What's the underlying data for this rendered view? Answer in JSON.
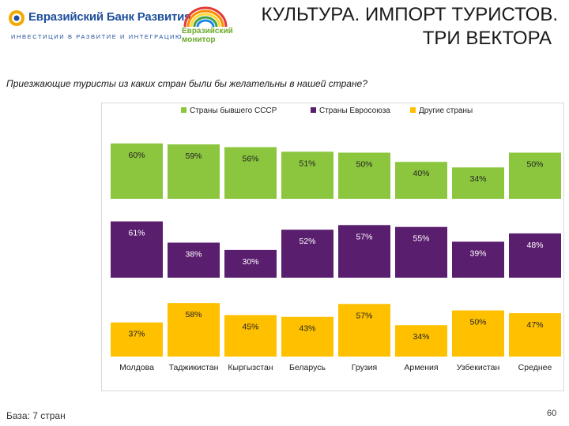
{
  "header": {
    "bank_name": "Евразийский Банк Развития",
    "bank_tagline": "ИНВЕСТИЦИИ В РАЗВИТИЕ И ИНТЕГРАЦИЮ",
    "monitor_line1": "Евразийский",
    "monitor_line2": "монитор",
    "title_line1": "КУЛЬТУРА. ИМПОРТ ТУРИСТОВ.",
    "title_line2": "ТРИ ВЕКТОРА"
  },
  "subtitle": "Приезжающие туристы из каких стран были бы желательны в нашей стране?",
  "footer": {
    "base": "База: 7 стран",
    "page": "60"
  },
  "colors": {
    "green": "#8cc63f",
    "purple": "#5a1e6e",
    "yellow": "#ffc000",
    "brand_blue": "#1f4e9a"
  },
  "chart_data": {
    "type": "bar",
    "title": "",
    "categories": [
      "Молдова",
      "Таджикистан",
      "Кыргызстан",
      "Беларусь",
      "Грузия",
      "Армения",
      "Узбекистан",
      "Среднее"
    ],
    "ylim": [
      0,
      70
    ],
    "legend_position": "top",
    "series": [
      {
        "name": "Страны бывшего СССР",
        "color": "#8cc63f",
        "values": [
          60,
          59,
          56,
          51,
          50,
          40,
          34,
          50
        ]
      },
      {
        "name": "Страны Евросоюза",
        "color": "#5a1e6e",
        "values": [
          61,
          38,
          30,
          52,
          57,
          55,
          39,
          48
        ]
      },
      {
        "name": "Другие страны",
        "color": "#ffc000",
        "values": [
          37,
          58,
          45,
          43,
          57,
          34,
          50,
          47
        ]
      }
    ]
  }
}
